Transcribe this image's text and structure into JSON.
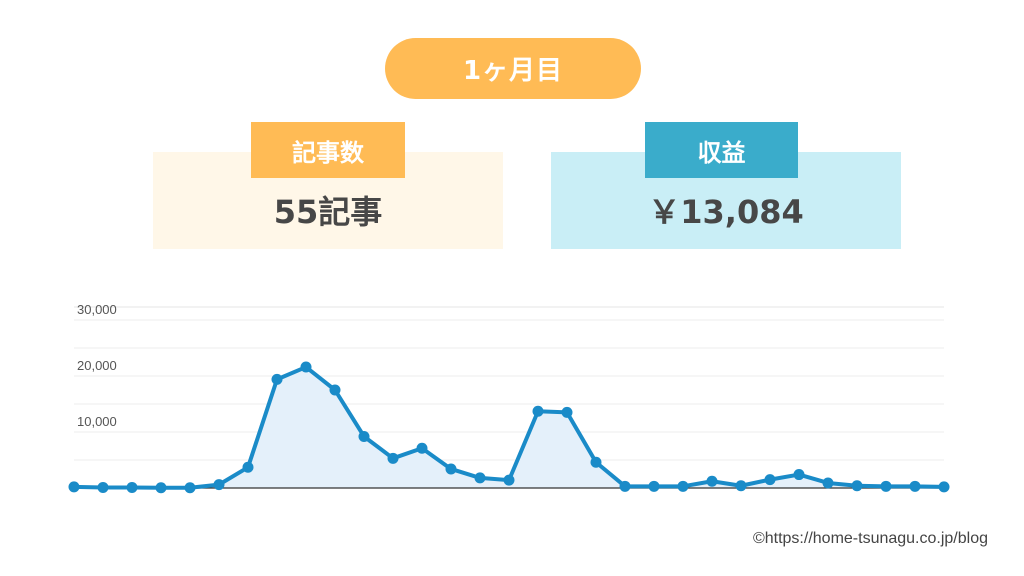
{
  "header": {
    "title": "1ヶ月目"
  },
  "articles_card": {
    "label": "記事数",
    "value": "55記事"
  },
  "revenue_card": {
    "label": "収益",
    "value": "￥13,084"
  },
  "credit": "©https://home-tsunagu.co.jp/blog",
  "colors": {
    "accent_orange": "#ffbb55",
    "accent_blue": "#3aaccb",
    "line": "#1a8bc8",
    "area_fill": "#e4f0fa"
  },
  "chart_data": {
    "type": "area",
    "title": "",
    "xlabel": "",
    "ylabel": "",
    "ylim": [
      0,
      30000
    ],
    "yticks": [
      10000,
      20000,
      30000
    ],
    "ytick_labels": [
      "10,000",
      "20,000",
      "30,000"
    ],
    "grid": true,
    "series": [
      {
        "values": [
          200,
          100,
          100,
          50,
          50,
          600,
          3700,
          19400,
          21600,
          17500,
          9200,
          5300,
          7100,
          3400,
          1800,
          1400,
          13700,
          13500,
          4600,
          300,
          300,
          300,
          1200,
          400,
          1500,
          2400,
          900,
          400,
          300,
          300,
          200
        ]
      }
    ]
  }
}
